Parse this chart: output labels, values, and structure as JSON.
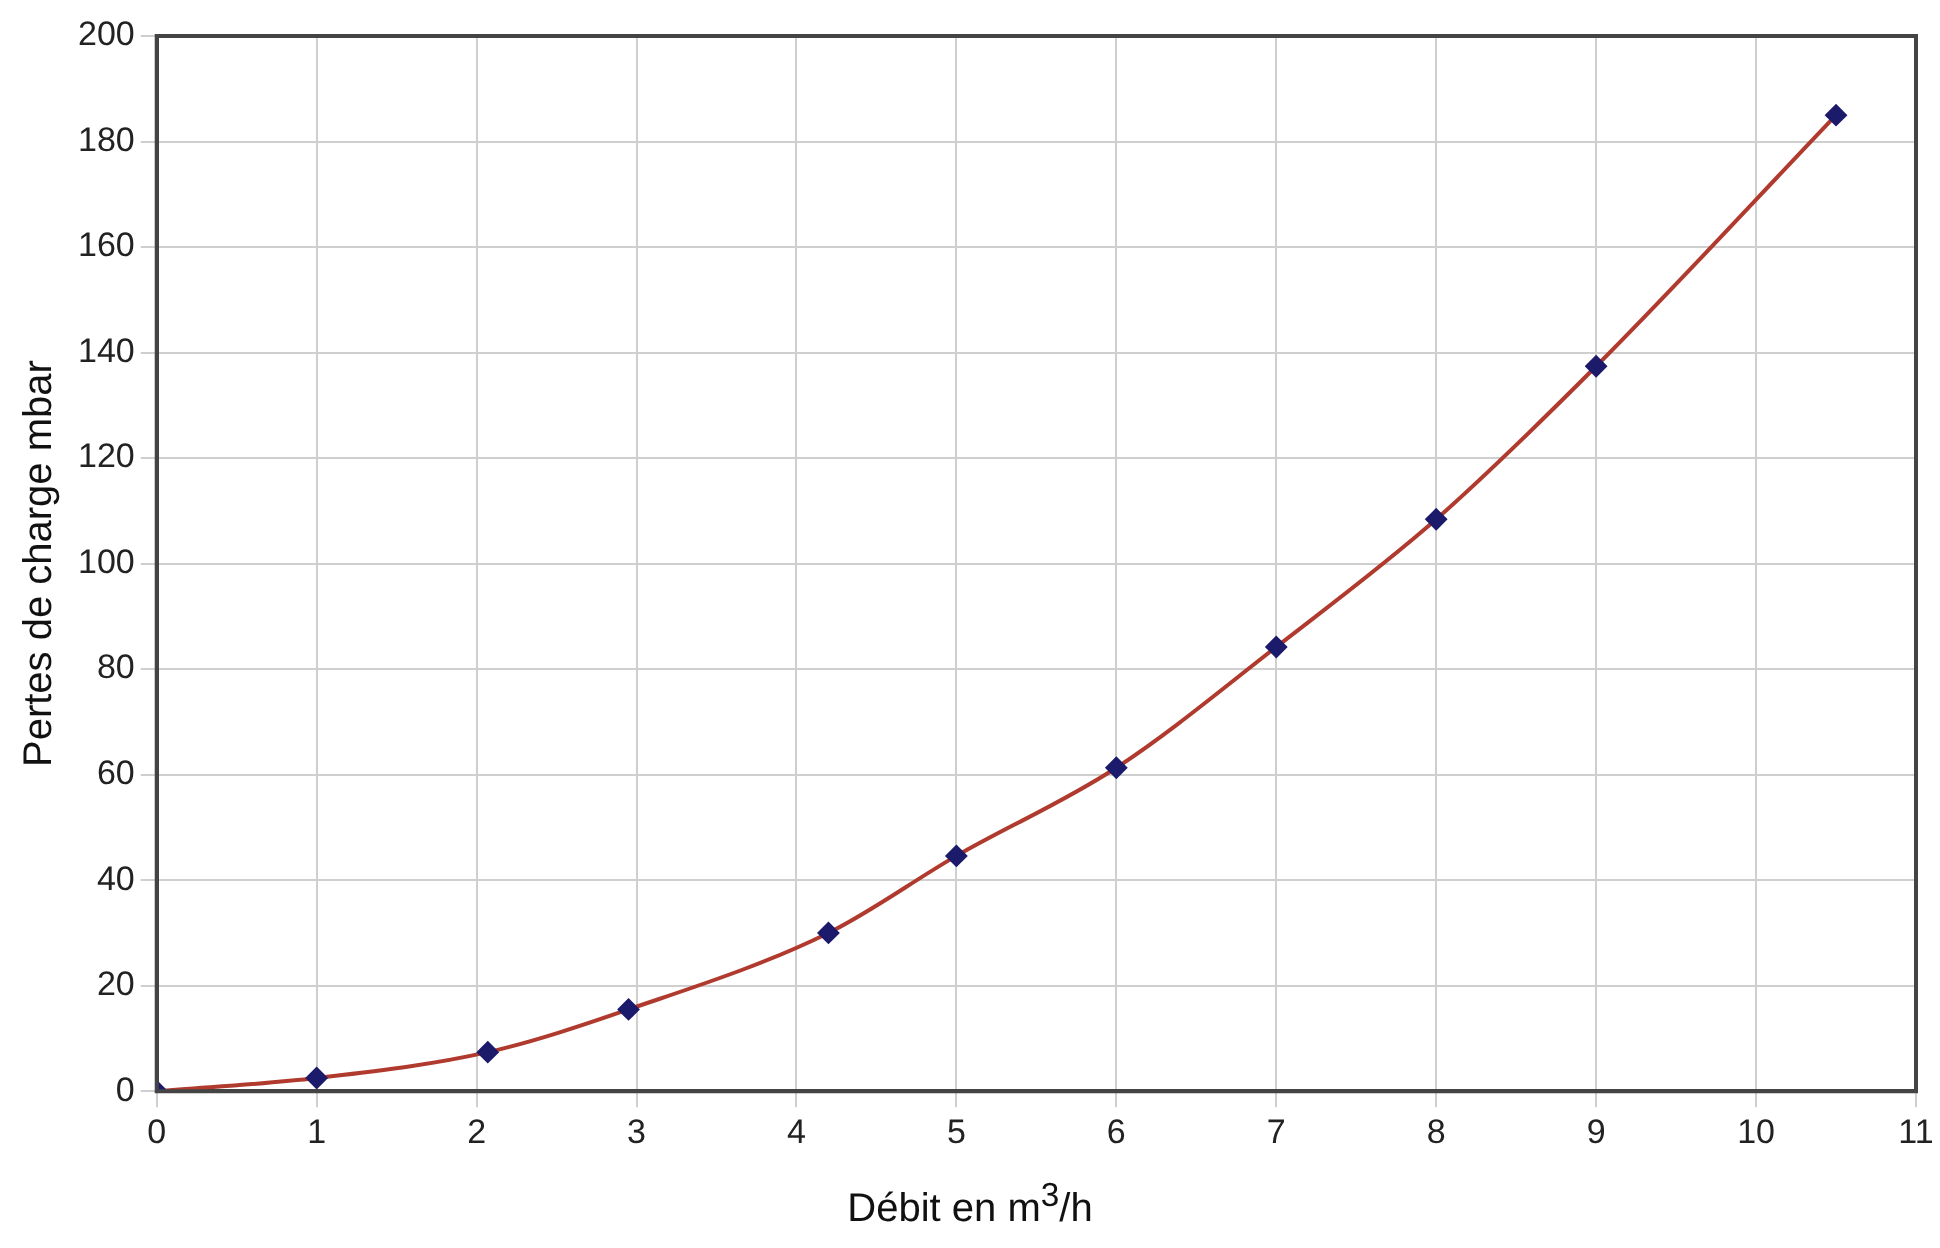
{
  "chart_data": {
    "type": "scatter",
    "xlabel": "Débit en m$^{3}$/h",
    "ylabel": "Pertes de charge mbar",
    "x": [
      0,
      1,
      2.07,
      2.95,
      4.2,
      5,
      6,
      7,
      8,
      9,
      10.5
    ],
    "series": [
      {
        "type": "line",
        "color": "#b03a2e",
        "marker": "none",
        "values": [
          0,
          2.5,
          7.4,
          15.5,
          30,
          44.6,
          61.3,
          84.2,
          108.4,
          137.4,
          185
        ]
      },
      {
        "type": "scatter",
        "color": "#1c1a6b",
        "marker": "diamond",
        "values": [
          0,
          2.5,
          7.4,
          15.5,
          30,
          44.6,
          61.3,
          84.2,
          108.4,
          137.4,
          185
        ]
      }
    ],
    "xlim": [
      0,
      11
    ],
    "xticks": [
      0,
      1,
      2,
      3,
      4,
      5,
      6,
      7,
      8,
      9,
      10,
      11
    ],
    "ylim": [
      0,
      200
    ],
    "yticks": [
      0,
      20,
      40,
      60,
      80,
      100,
      120,
      140,
      160,
      180,
      200
    ],
    "grid": true,
    "legend": false
  }
}
